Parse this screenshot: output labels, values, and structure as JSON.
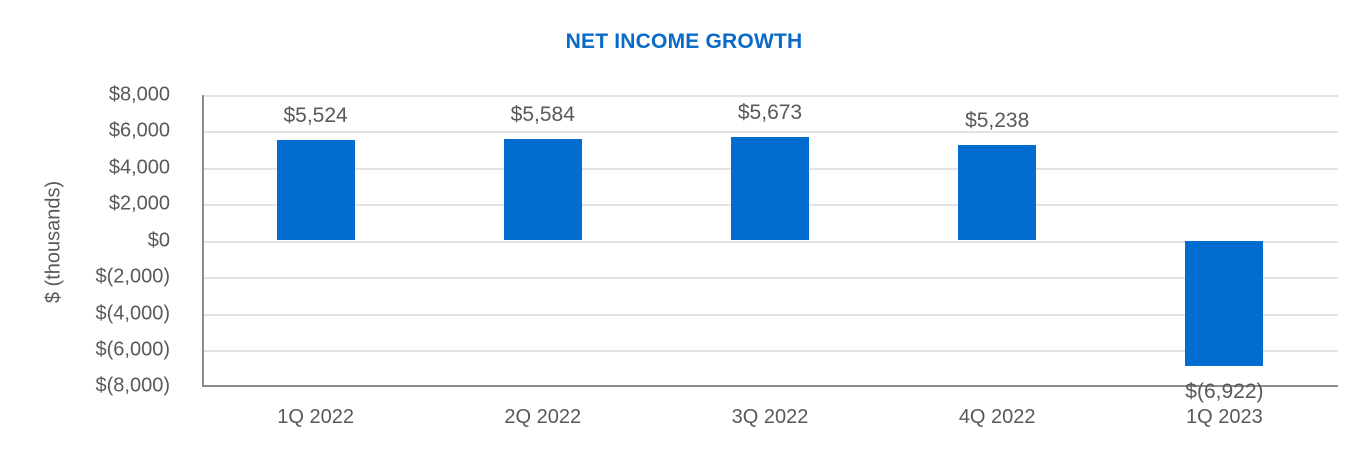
{
  "chart_data": {
    "type": "bar",
    "title": "NET INCOME GROWTH",
    "xlabel": "",
    "ylabel": "$ (thousands)",
    "categories": [
      "1Q 2022",
      "2Q 2022",
      "3Q 2022",
      "4Q 2022",
      "1Q 2023"
    ],
    "values": [
      5524,
      5584,
      5673,
      5238,
      -6922
    ],
    "data_labels": [
      "$5,524",
      "$5,584",
      "$5,673",
      "$5,238",
      "$(6,922)"
    ],
    "ylim": [
      -8000,
      8000
    ],
    "yticks": [
      8000,
      6000,
      4000,
      2000,
      0,
      -2000,
      -4000,
      -6000,
      -8000
    ],
    "ytick_labels": [
      "$8,000",
      "$6,000",
      "$4,000",
      "$2,000",
      "$0",
      "$(2,000)",
      "$(4,000)",
      "$(6,000)",
      "$(8,000)"
    ],
    "grid": true,
    "legend": null,
    "bar_color": "#036ccf",
    "title_color": "#0a6ac8"
  }
}
